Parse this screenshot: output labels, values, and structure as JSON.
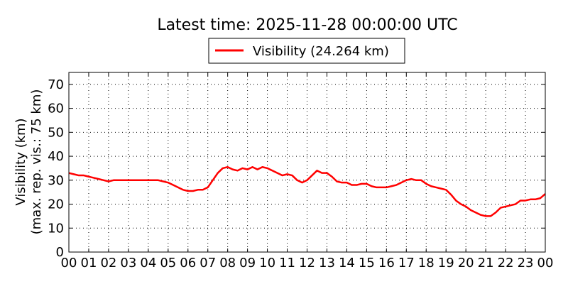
{
  "chart_data": {
    "type": "line",
    "title": "Latest time: 2025-11-28 00:00:00 UTC",
    "ylabel": "Visibility (km)",
    "ylabel2": "(max. rep. vis.: 75 km)",
    "xlabel": "",
    "ylim": [
      0,
      75
    ],
    "xlim": [
      0,
      24
    ],
    "grid": true,
    "legend_placement": "top-center",
    "x_ticks": [
      "00",
      "01",
      "02",
      "03",
      "04",
      "05",
      "06",
      "07",
      "08",
      "09",
      "10",
      "11",
      "12",
      "13",
      "14",
      "15",
      "16",
      "17",
      "18",
      "19",
      "20",
      "21",
      "22",
      "23",
      "00"
    ],
    "y_ticks": [
      "0",
      "10",
      "20",
      "30",
      "40",
      "50",
      "60",
      "70"
    ],
    "series": [
      {
        "name": "Visibility (24.264 km)",
        "color": "#ff0000",
        "x": [
          0,
          0.25,
          0.5,
          0.75,
          1,
          1.25,
          1.5,
          1.75,
          2,
          2.25,
          2.5,
          2.75,
          3,
          3.25,
          3.5,
          3.75,
          4,
          4.25,
          4.5,
          4.75,
          5,
          5.25,
          5.5,
          5.75,
          6,
          6.25,
          6.5,
          6.75,
          7,
          7.25,
          7.5,
          7.75,
          8,
          8.25,
          8.5,
          8.75,
          9,
          9.25,
          9.5,
          9.75,
          10,
          10.25,
          10.5,
          10.75,
          11,
          11.25,
          11.5,
          11.75,
          12,
          12.25,
          12.5,
          12.75,
          13,
          13.25,
          13.5,
          13.75,
          14,
          14.25,
          14.5,
          14.75,
          15,
          15.25,
          15.5,
          15.75,
          16,
          16.25,
          16.5,
          16.75,
          17,
          17.25,
          17.5,
          17.75,
          18,
          18.25,
          18.5,
          18.75,
          19,
          19.25,
          19.5,
          19.75,
          20,
          20.25,
          20.5,
          20.75,
          21,
          21.25,
          21.5,
          21.75,
          22,
          22.25,
          22.5,
          22.75,
          23,
          23.25,
          23.5,
          23.75,
          24
        ],
        "y": [
          33,
          32.5,
          32,
          32,
          31.5,
          31,
          30.5,
          30,
          29.5,
          30,
          30,
          30,
          30,
          30,
          30,
          30,
          30,
          30,
          30,
          29.5,
          29,
          28,
          27,
          26,
          25.5,
          25.5,
          26,
          26,
          27,
          30,
          33,
          35,
          35.5,
          34.5,
          34,
          35,
          34.5,
          35.5,
          34.5,
          35.5,
          35,
          34,
          33,
          32,
          32.5,
          32,
          30,
          29,
          30,
          32,
          34,
          33,
          33,
          31.5,
          29.5,
          29,
          29,
          28,
          28,
          28.5,
          28.5,
          27.5,
          27,
          27,
          27,
          27.5,
          28,
          29,
          30,
          30.5,
          30,
          30,
          28.5,
          27.5,
          27,
          26.5,
          26,
          24,
          21.5,
          20,
          19,
          17.5,
          16.5,
          15.5,
          15,
          15,
          16.5,
          18.5,
          19,
          19.5,
          20,
          21.5,
          21.5,
          22,
          22,
          22.5,
          24.3
        ]
      }
    ]
  }
}
